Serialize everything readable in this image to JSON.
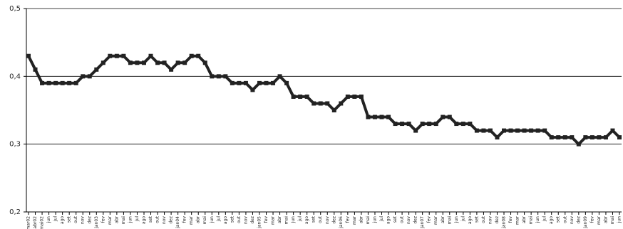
{
  "chart_data": {
    "type": "line",
    "categories": [
      "mar02",
      "abr02",
      "mai02",
      "jun",
      "jul",
      "ago",
      "set",
      "out",
      "nov",
      "dez",
      "jan03",
      "fev",
      "mar",
      "abr",
      "mai",
      "jun",
      "jul",
      "ago",
      "set",
      "out",
      "nov",
      "dez",
      "jan04",
      "fev",
      "mar",
      "abr",
      "mai",
      "jun",
      "jul",
      "ago",
      "set",
      "out",
      "nov",
      "dez",
      "jan05",
      "fev",
      "mar",
      "abr",
      "mai",
      "jun",
      "jul",
      "ago",
      "set",
      "out",
      "nov",
      "dez",
      "jan06",
      "fev",
      "mar",
      "abr",
      "mai",
      "jun",
      "jul",
      "ago",
      "set",
      "out",
      "nov",
      "dez",
      "jan07",
      "fev",
      "mar",
      "abr",
      "mai",
      "jun",
      "jul",
      "ago",
      "set",
      "out",
      "nov",
      "dez",
      "jan08",
      "fev",
      "mar",
      "abr",
      "mai",
      "jun",
      "jul",
      "ago",
      "set",
      "out",
      "nov",
      "dez",
      "jan09",
      "fev",
      "mar",
      "abr",
      "mai",
      "jun"
    ],
    "values": [
      0.43,
      0.41,
      0.39,
      0.39,
      0.39,
      0.39,
      0.39,
      0.39,
      0.4,
      0.4,
      0.41,
      0.42,
      0.43,
      0.43,
      0.43,
      0.42,
      0.42,
      0.42,
      0.43,
      0.42,
      0.42,
      0.41,
      0.42,
      0.42,
      0.43,
      0.43,
      0.42,
      0.4,
      0.4,
      0.4,
      0.39,
      0.39,
      0.39,
      0.38,
      0.39,
      0.39,
      0.39,
      0.4,
      0.39,
      0.37,
      0.37,
      0.37,
      0.36,
      0.36,
      0.36,
      0.35,
      0.36,
      0.37,
      0.37,
      0.37,
      0.34,
      0.34,
      0.34,
      0.34,
      0.33,
      0.33,
      0.33,
      0.32,
      0.33,
      0.33,
      0.33,
      0.34,
      0.34,
      0.33,
      0.33,
      0.33,
      0.32,
      0.32,
      0.32,
      0.31,
      0.32,
      0.32,
      0.32,
      0.32,
      0.32,
      0.32,
      0.32,
      0.31,
      0.31,
      0.31,
      0.31,
      0.3,
      0.31,
      0.31,
      0.31,
      0.31,
      0.32,
      0.31
    ],
    "color": "#222222",
    "ylim": [
      0.2,
      0.5
    ],
    "yticks": [
      {
        "value": 0.2,
        "label": "0,2"
      },
      {
        "value": 0.3,
        "label": "0,3"
      },
      {
        "value": 0.4,
        "label": "0,4"
      },
      {
        "value": 0.5,
        "label": "0,5"
      }
    ],
    "grid": true
  }
}
